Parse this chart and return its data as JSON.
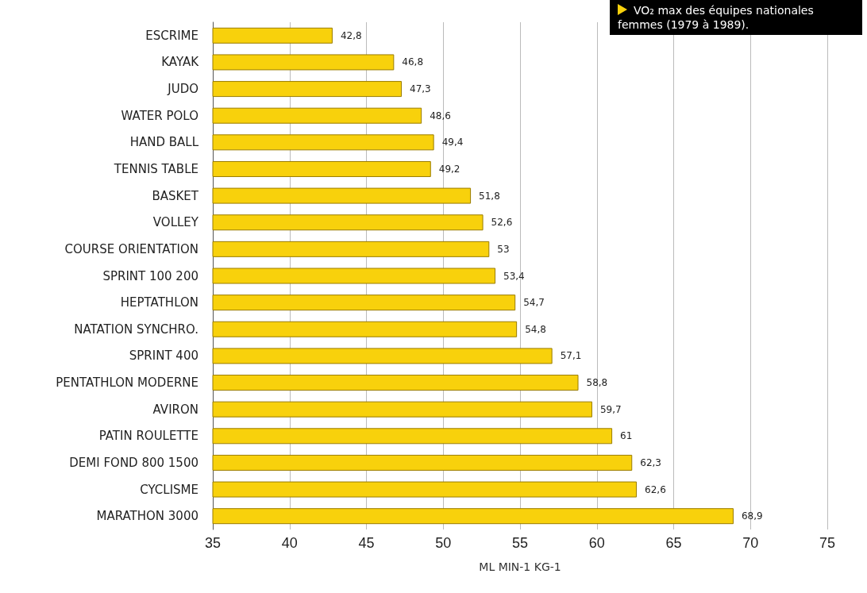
{
  "chart_data": {
    "type": "bar",
    "orientation": "horizontal",
    "title": "VO₂ max des équipes nationales femmes (1979 à 1989).",
    "xlabel": "ML MIN-1 KG-1",
    "categories": [
      "ESCRIME",
      "KAYAK",
      "JUDO",
      "WATER POLO",
      "HAND BALL",
      "TENNIS TABLE",
      "BASKET",
      "VOLLEY",
      "COURSE ORIENTATION",
      "SPRINT 100 200",
      "HEPTATHLON",
      "NATATION SYNCHRO.",
      "SPRINT 400",
      "PENTATHLON MODERNE",
      "AVIRON",
      "PATIN ROULETTE",
      "DEMI FOND 800 1500",
      "CYCLISME",
      "MARATHON 3000"
    ],
    "values": [
      42.8,
      46.8,
      47.3,
      48.6,
      49.4,
      49.2,
      51.8,
      52.6,
      53,
      53.4,
      54.7,
      54.8,
      57.1,
      58.8,
      59.7,
      61,
      62.3,
      62.6,
      68.9
    ],
    "value_labels": [
      "42,8",
      "46,8",
      "47,3",
      "48,6",
      "49,4",
      "49,2",
      "51,8",
      "52,6",
      "53",
      "53,4",
      "54,7",
      "54,8",
      "57,1",
      "58,8",
      "59,7",
      "61",
      "62,3",
      "62,6",
      "68,9"
    ],
    "color": "#f8d10c",
    "xlim": [
      35,
      75
    ],
    "xticks": [
      35,
      40,
      45,
      50,
      55,
      60,
      65,
      70,
      75
    ],
    "grid": "x"
  }
}
